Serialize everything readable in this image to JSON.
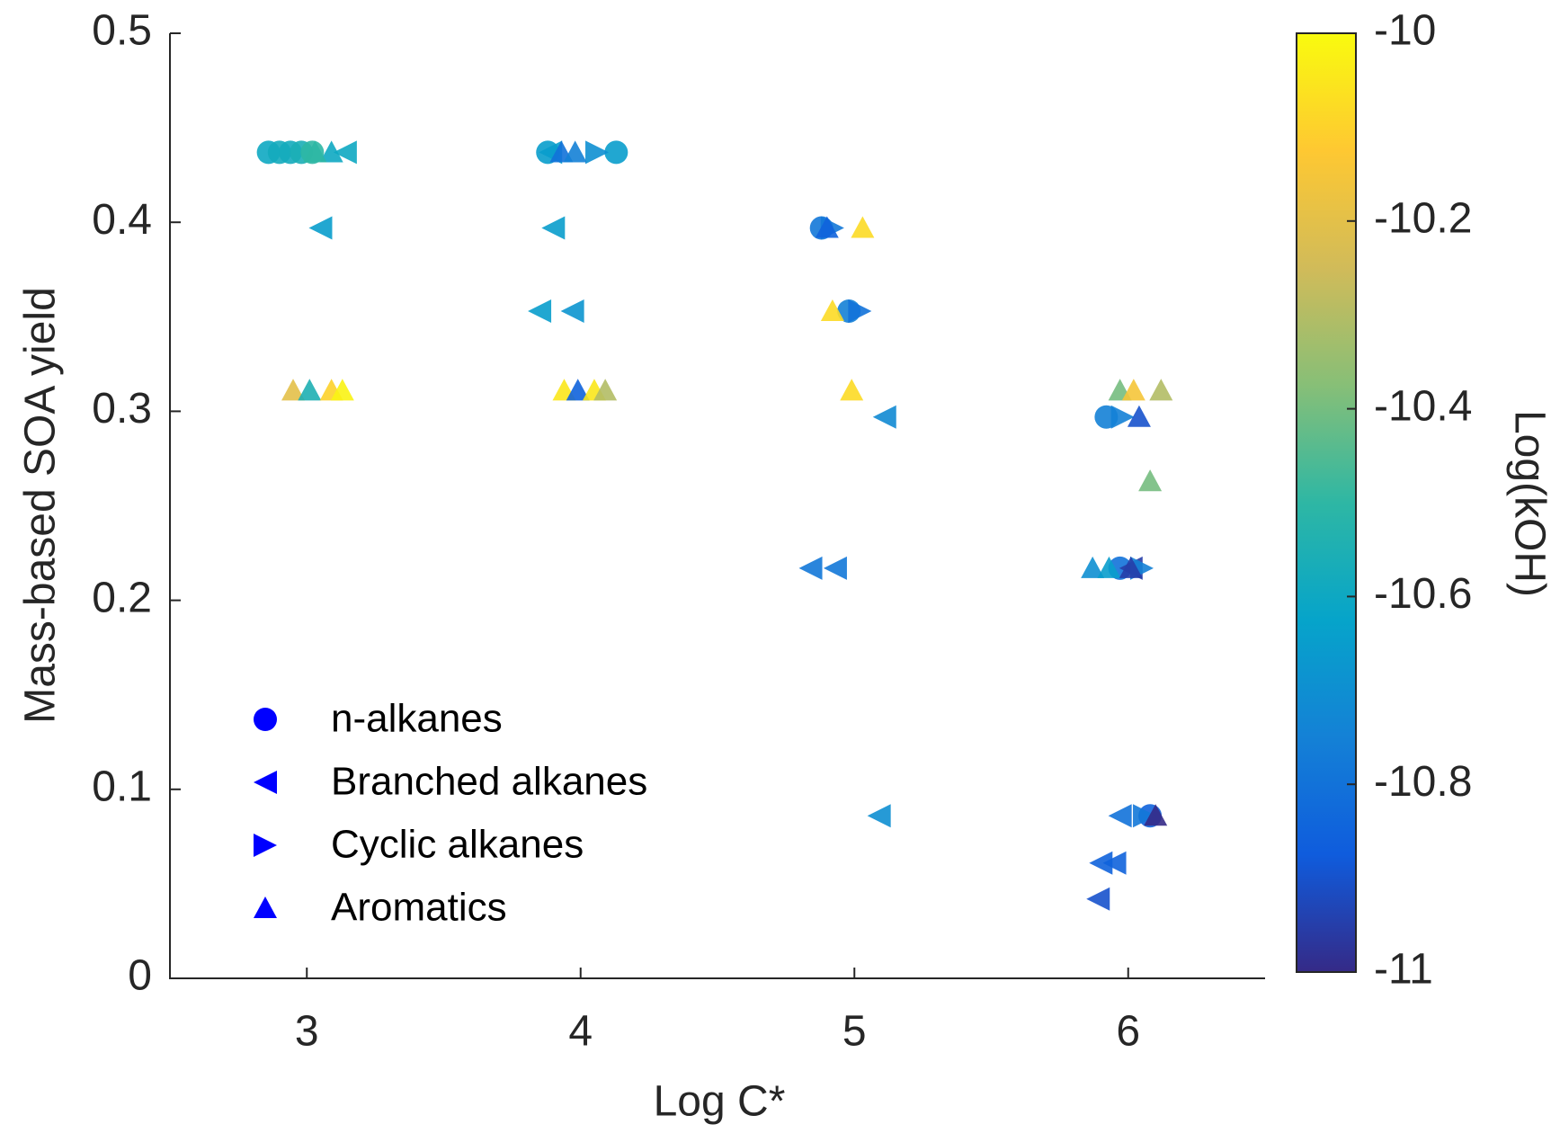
{
  "chart_data": {
    "type": "scatter",
    "xlabel": "Log C*",
    "ylabel": "Mass-based SOA yield",
    "colorbar_label": "Log(kOH)",
    "xlim": [
      2.5,
      6.5
    ],
    "xticks": [
      3,
      4,
      5,
      6
    ],
    "ylim": [
      0,
      0.5
    ],
    "yticks": [
      0,
      0.1,
      0.2,
      0.3,
      0.4,
      0.5
    ],
    "clim": [
      -11,
      -10
    ],
    "cticks": [
      -11,
      -10.8,
      -10.6,
      -10.4,
      -10.2,
      -10
    ],
    "colormap": [
      "#352a87",
      "#0f5cdd",
      "#1481d6",
      "#06a4ca",
      "#2eb7a4",
      "#87bf77",
      "#d1bb59",
      "#fec832",
      "#f9fb0e"
    ],
    "legend": "lower left",
    "series": [
      {
        "name": "n-alkanes",
        "marker": "circle",
        "color": "#0000ff",
        "x": [
          2.86,
          2.9,
          2.94,
          2.98,
          3.02,
          3.88,
          4.13,
          4.88,
          4.98,
          5.92,
          5.97,
          6.08
        ],
        "values": [
          0.437,
          0.437,
          0.437,
          0.437,
          0.437,
          0.437,
          0.437,
          0.397,
          0.353,
          0.297,
          0.217,
          0.086
        ],
        "c": [
          -10.6,
          -10.58,
          -10.58,
          -10.56,
          -10.5,
          -10.65,
          -10.65,
          -10.78,
          -10.75,
          -10.75,
          -10.8,
          -10.85
        ]
      },
      {
        "name": "Branched alkanes",
        "marker": "left",
        "color": "#0000ff",
        "x": [
          3.14,
          3.05,
          3.89,
          3.9,
          3.85,
          3.97,
          5.11,
          4.84,
          4.93,
          5.09,
          5.97,
          5.9,
          5.95,
          5.89,
          6.01
        ],
        "values": [
          0.437,
          0.397,
          0.437,
          0.397,
          0.353,
          0.353,
          0.297,
          0.217,
          0.217,
          0.086,
          0.086,
          0.061,
          0.061,
          0.042,
          0.217
        ],
        "c": [
          -10.6,
          -10.65,
          -10.65,
          -10.65,
          -10.65,
          -10.68,
          -10.72,
          -10.78,
          -10.78,
          -10.7,
          -10.8,
          -10.85,
          -10.85,
          -10.9,
          -10.95
        ]
      },
      {
        "name": "Cyclic alkanes",
        "marker": "right",
        "color": "#0000ff",
        "x": [
          4.06,
          4.92,
          5.02,
          5.98,
          6.05,
          6.06
        ],
        "values": [
          0.437,
          0.397,
          0.353,
          0.297,
          0.217,
          0.086
        ],
        "c": [
          -10.7,
          -10.78,
          -10.8,
          -10.75,
          -10.75,
          -10.78
        ]
      },
      {
        "name": "Aromatics",
        "marker": "up",
        "color": "#0000ff",
        "x": [
          3.09,
          3.03,
          2.95,
          3.01,
          3.09,
          3.13,
          3.93,
          3.98,
          3.94,
          3.99,
          4.05,
          4.09,
          4.9,
          5.03,
          4.92,
          4.99,
          5.97,
          6.02,
          6.12,
          6.04,
          6.08,
          5.87,
          5.93,
          6.01,
          6.1
        ],
        "values": [
          0.437,
          0.437,
          0.311,
          0.311,
          0.311,
          0.311,
          0.437,
          0.437,
          0.311,
          0.311,
          0.311,
          0.311,
          0.397,
          0.397,
          0.353,
          0.311,
          0.311,
          0.311,
          0.311,
          0.297,
          0.263,
          0.217,
          0.217,
          0.217,
          0.086
        ],
        "c": [
          -10.6,
          -10.5,
          -10.2,
          -10.55,
          -10.1,
          -10.02,
          -10.8,
          -10.75,
          -10.05,
          -10.85,
          -10.05,
          -10.3,
          -10.85,
          -10.08,
          -10.08,
          -10.08,
          -10.4,
          -10.15,
          -10.3,
          -10.9,
          -10.4,
          -10.7,
          -10.65,
          -10.95,
          -11
        ]
      }
    ]
  }
}
